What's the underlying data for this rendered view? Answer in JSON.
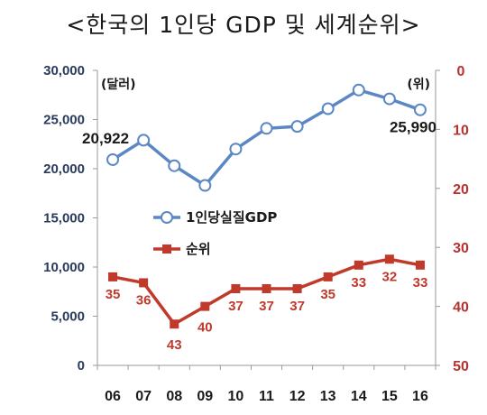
{
  "title": "<한국의 1인당 GDP 및 세계순위>",
  "colors": {
    "gdp": "#5b87c5",
    "rank": "#c0392b",
    "left_axis_text": "#2a3a5c",
    "right_axis_text": "#b8312f"
  },
  "chart_data": {
    "type": "line",
    "categories": [
      "06",
      "07",
      "08",
      "09",
      "10",
      "11",
      "12",
      "13",
      "14",
      "15",
      "16"
    ],
    "series": [
      {
        "name": "1인당실질GDP",
        "axis": "left",
        "marker": "hollow-circle",
        "values": [
          20922,
          22900,
          20300,
          18300,
          22000,
          24100,
          24300,
          26100,
          28000,
          27100,
          25990
        ],
        "labels": {
          "0": "20,922",
          "10": "25,990"
        }
      },
      {
        "name": "순위",
        "axis": "right",
        "marker": "filled-square",
        "values": [
          35,
          36,
          43,
          40,
          37,
          37,
          37,
          35,
          33,
          32,
          33
        ],
        "labels": {
          "0": "35",
          "1": "36",
          "2": "43",
          "3": "40",
          "4": "37",
          "5": "37",
          "6": "37",
          "7": "35",
          "8": "33",
          "9": "32",
          "10": "33"
        }
      }
    ],
    "left_axis": {
      "unit_label": "(달러)",
      "min": 0,
      "max": 30000,
      "ticks": [
        "0",
        "5,000",
        "10,000",
        "15,000",
        "20,000",
        "25,000",
        "30,000"
      ]
    },
    "right_axis": {
      "unit_label": "(위)",
      "min": 0,
      "max": 50,
      "inverted": true,
      "ticks": [
        "0",
        "10",
        "20",
        "30",
        "40",
        "50"
      ]
    },
    "legend": {
      "placement": "center-left",
      "entries": [
        "1인당실질GDP",
        "순위"
      ]
    },
    "grid": false
  }
}
